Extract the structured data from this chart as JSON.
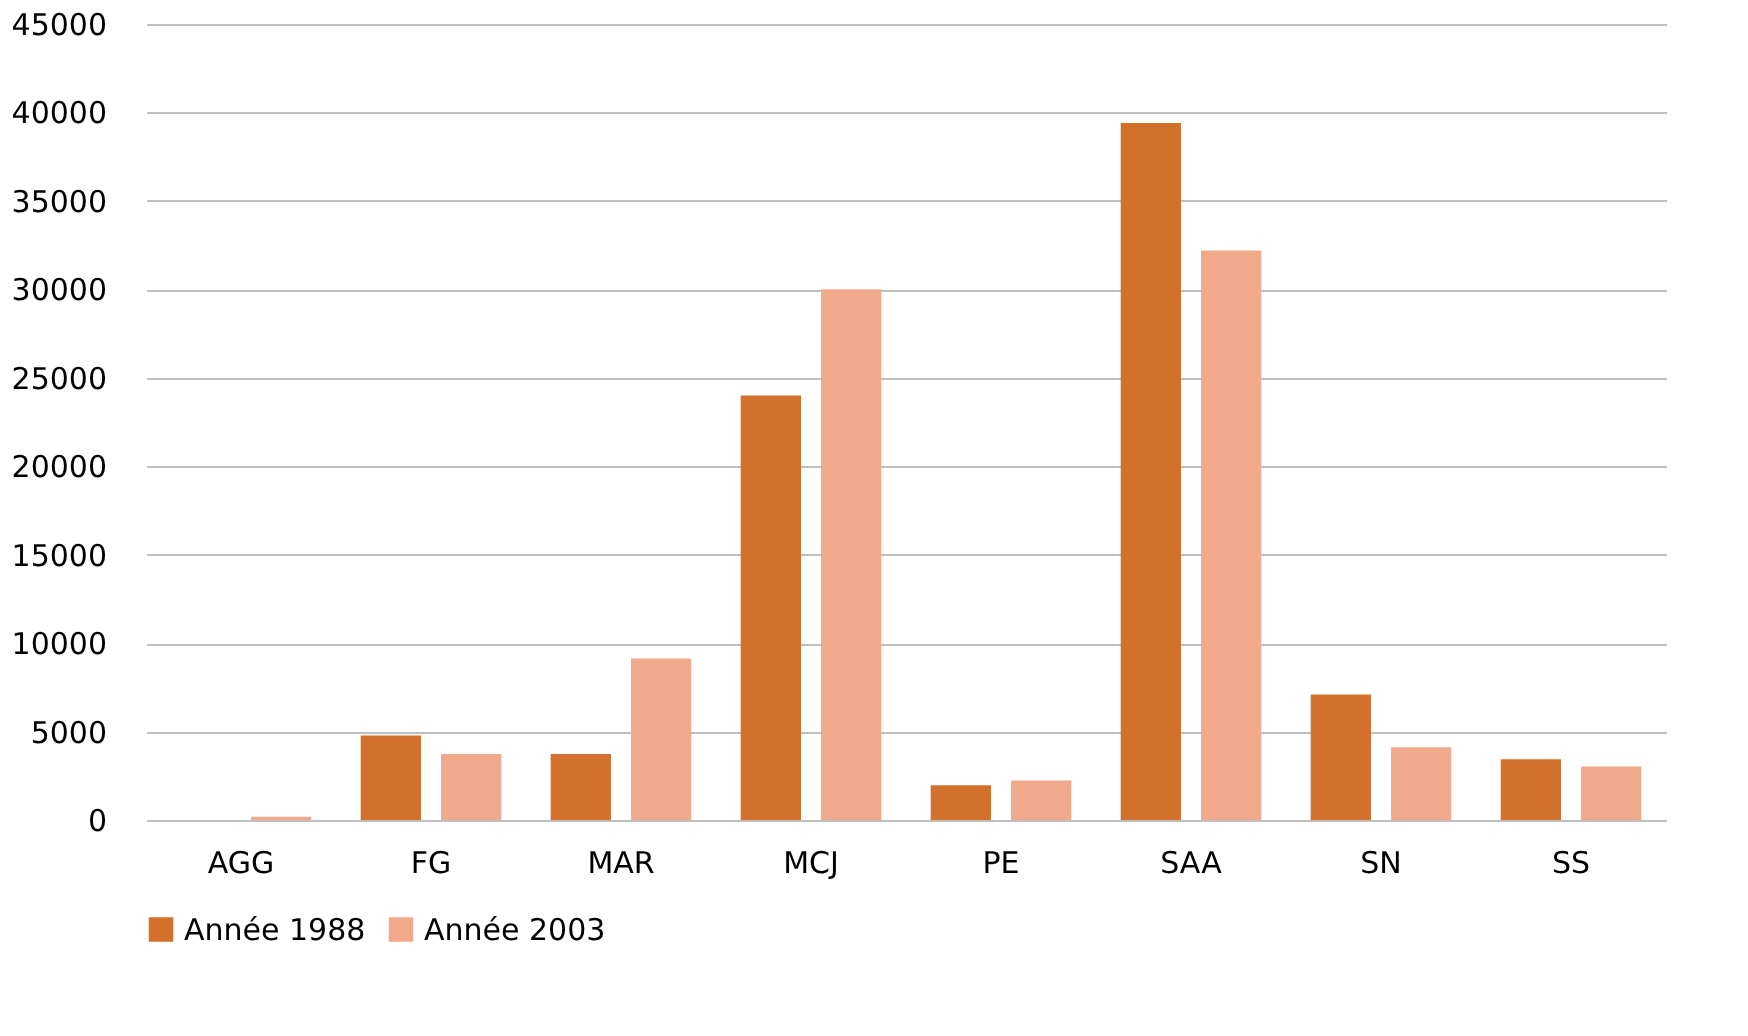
{
  "chart_data": {
    "type": "bar",
    "categories": [
      "AGG",
      "FG",
      "MAR",
      "MCJ",
      "PE",
      "SAA",
      "SN",
      "SS"
    ],
    "series": [
      {
        "name": "Année 1988",
        "color": "#d2702c",
        "values": [
          0,
          4780,
          3730,
          24000,
          1960,
          39400,
          7100,
          3430
        ]
      },
      {
        "name": "Année 2003",
        "color": "#f0a98b",
        "values": [
          190,
          3730,
          9130,
          30000,
          2230,
          32200,
          4110,
          3020
        ]
      }
    ],
    "ylim": [
      0,
      45000
    ],
    "yticks": [
      0,
      5000,
      10000,
      15000,
      20000,
      25000,
      30000,
      35000,
      40000,
      45000
    ],
    "grid": "y",
    "legend": "bottom"
  }
}
